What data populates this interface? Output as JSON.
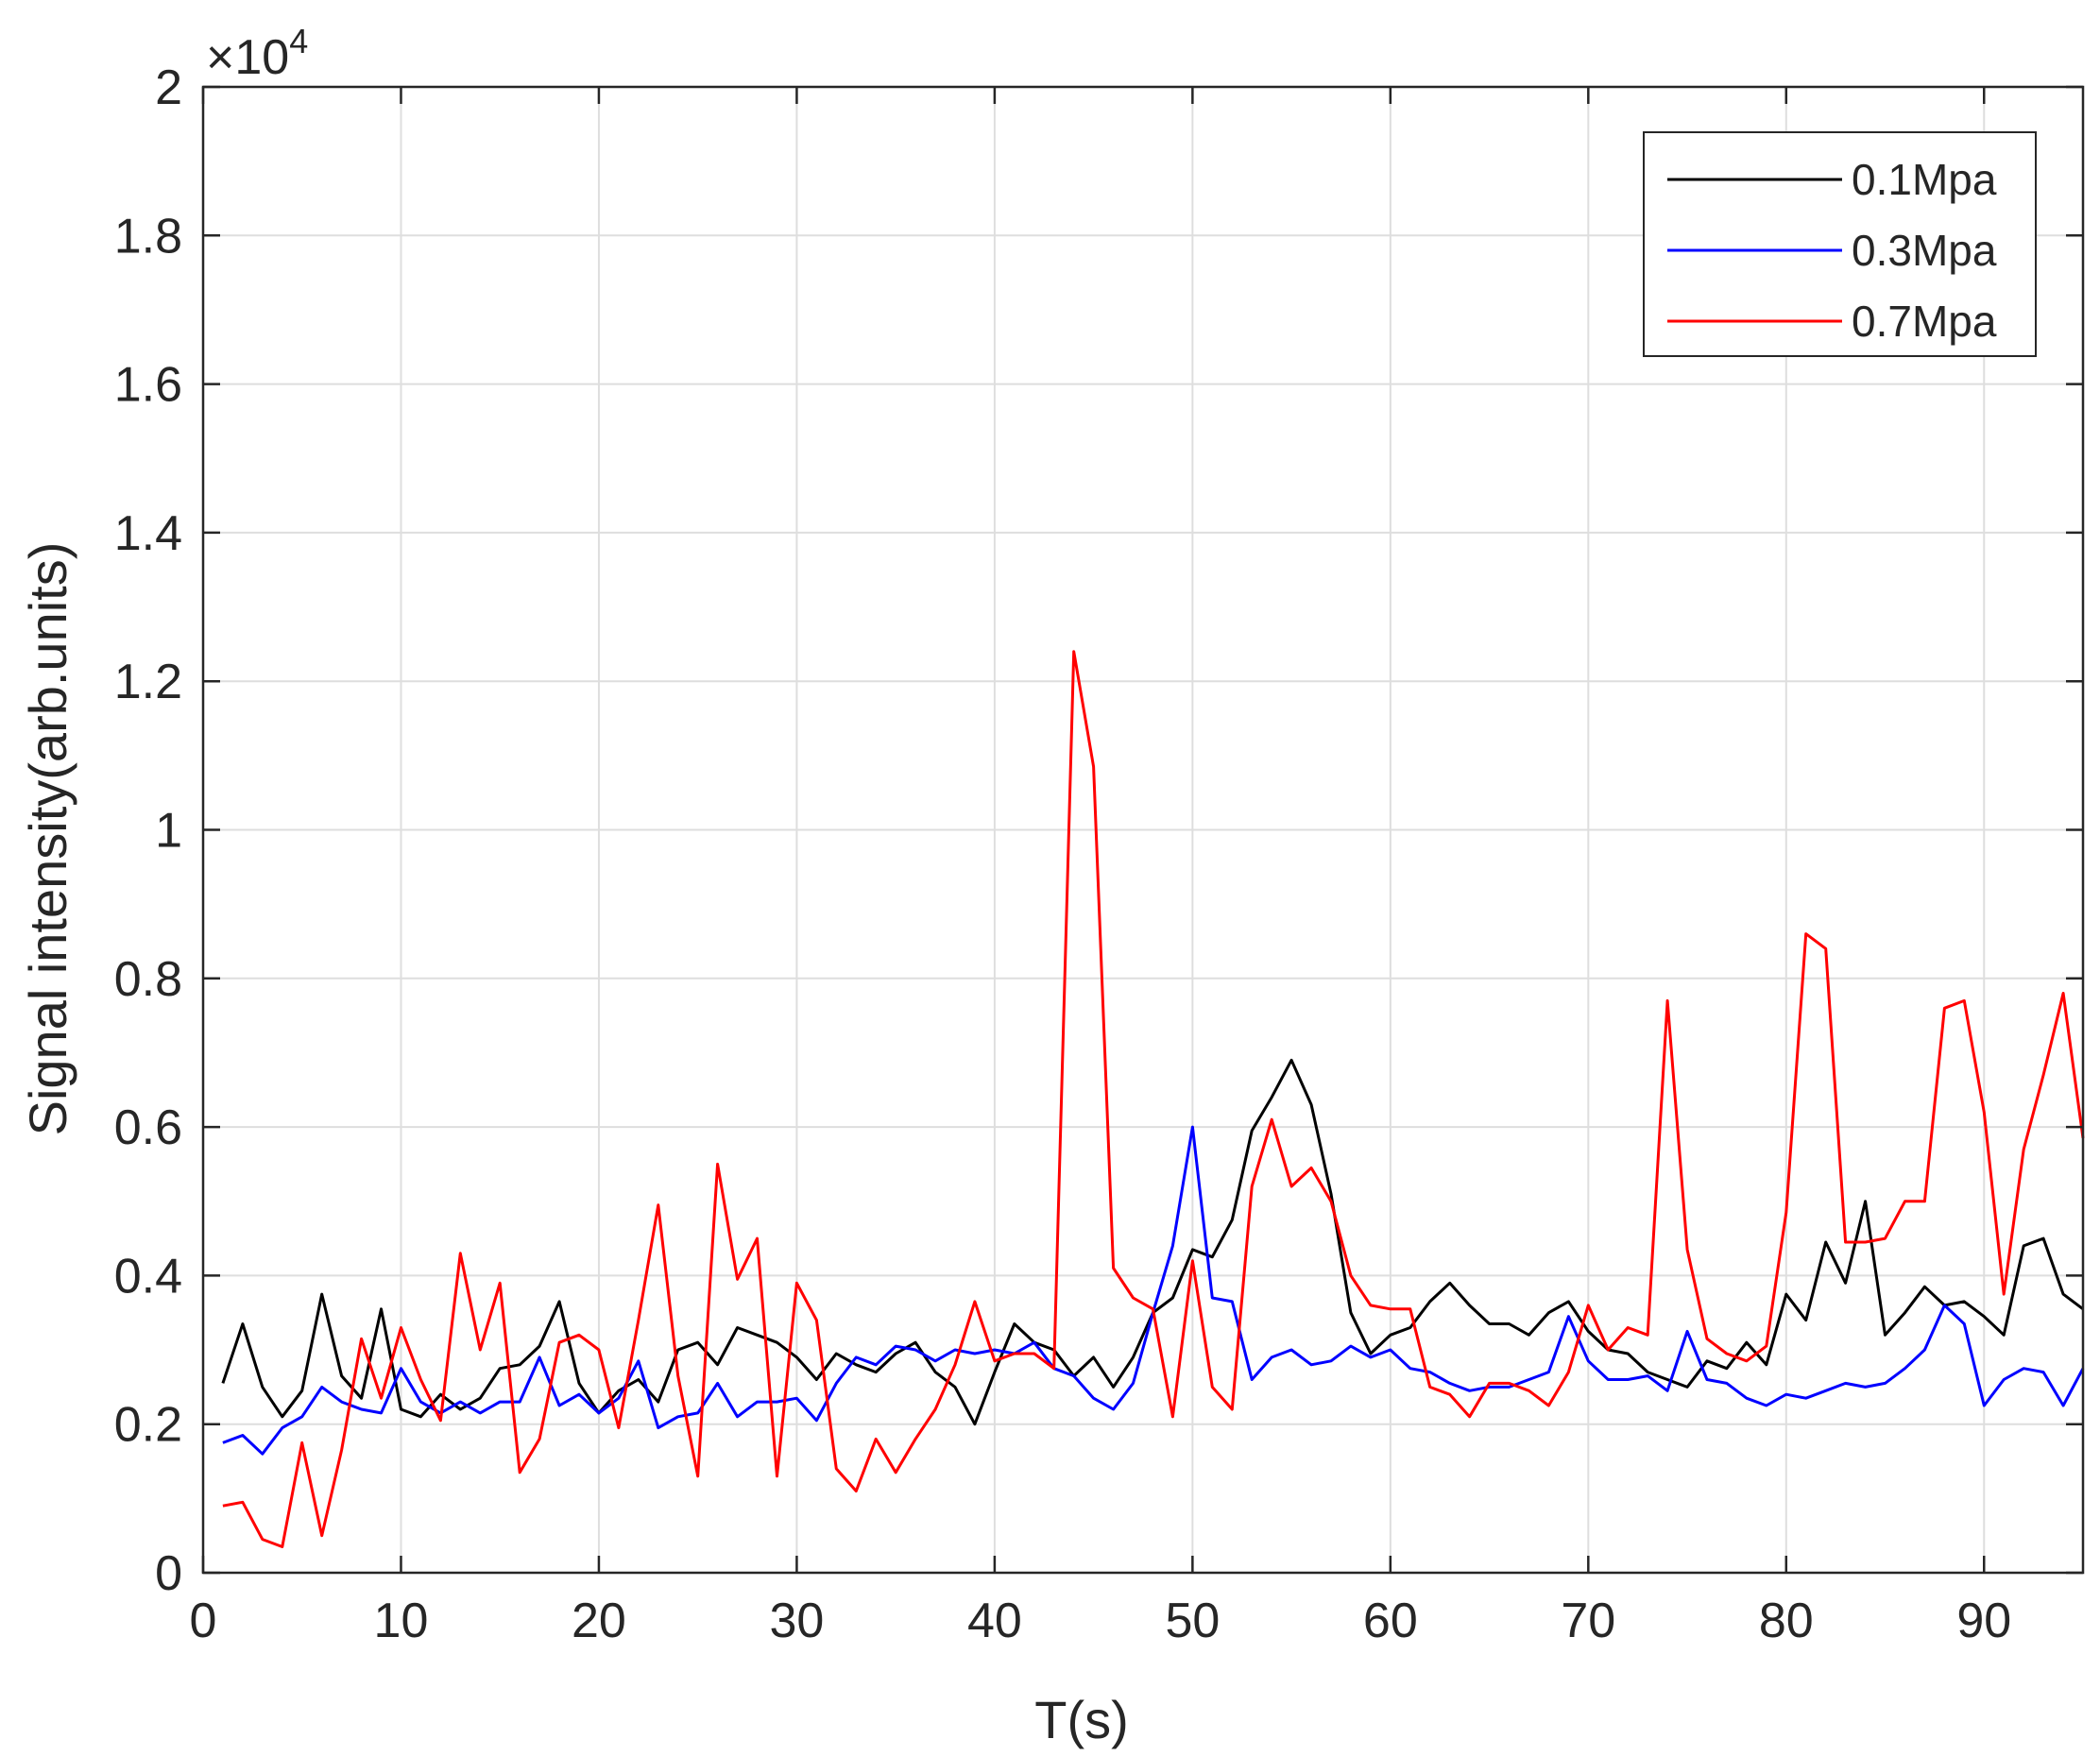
{
  "chart_data": {
    "type": "line",
    "xlabel": "T(s)",
    "ylabel": "Signal intensity(arb.units)",
    "y_multiplier": {
      "base": "×10",
      "exponent": "4"
    },
    "xlim": [
      0,
      95
    ],
    "ylim": [
      0,
      20000
    ],
    "x_ticks": [
      0,
      10,
      20,
      30,
      40,
      50,
      60,
      70,
      80,
      90
    ],
    "x_tick_labels": [
      "0",
      "10",
      "20",
      "30",
      "40",
      "50",
      "60",
      "70",
      "80",
      "90"
    ],
    "y_ticks": [
      0,
      2000,
      4000,
      6000,
      8000,
      10000,
      12000,
      14000,
      16000,
      18000,
      20000
    ],
    "y_tick_labels": [
      "0",
      "0.2",
      "0.4",
      "0.6",
      "0.8",
      "1",
      "1.2",
      "1.4",
      "1.6",
      "1.8",
      "2"
    ],
    "grid": true,
    "legend_position": "top-right",
    "x": [
      1,
      2,
      3,
      4,
      5,
      6,
      7,
      8,
      9,
      10,
      11,
      12,
      13,
      14,
      15,
      16,
      17,
      18,
      19,
      20,
      21,
      22,
      23,
      24,
      25,
      26,
      27,
      28,
      29,
      30,
      31,
      32,
      33,
      34,
      35,
      36,
      37,
      38,
      39,
      40,
      41,
      42,
      43,
      44,
      45,
      46,
      47,
      48,
      49,
      50,
      51,
      52,
      53,
      54,
      55,
      56,
      57,
      58,
      59,
      60,
      61,
      62,
      63,
      64,
      65,
      66,
      67,
      68,
      69,
      70,
      71,
      72,
      73,
      74,
      75,
      76,
      77,
      78,
      79,
      80,
      81,
      82,
      83,
      84,
      85,
      86,
      87,
      88,
      89,
      90,
      91,
      92,
      93,
      94,
      95
    ],
    "series": [
      {
        "name": "0.1Mpa",
        "color": "#000000",
        "values": [
          2550,
          3350,
          2500,
          2100,
          2450,
          3750,
          2650,
          2350,
          3550,
          2200,
          2100,
          2400,
          2200,
          2350,
          2750,
          2800,
          3050,
          3650,
          2550,
          2150,
          2450,
          2600,
          2300,
          3000,
          3100,
          2800,
          3300,
          3200,
          3100,
          2900,
          2600,
          2950,
          2800,
          2700,
          2950,
          3100,
          2700,
          2500,
          2000,
          2700,
          3350,
          3100,
          3000,
          2650,
          2900,
          2500,
          2900,
          3500,
          3700,
          4350,
          4250,
          4750,
          5950,
          6400,
          6900,
          6300,
          5100,
          3500,
          2950,
          3200,
          3300,
          3650,
          3900,
          3600,
          3350,
          3350,
          3200,
          3500,
          3650,
          3250,
          3000,
          2950,
          2700,
          2600,
          2500,
          2850,
          2750,
          3100,
          2800,
          3750,
          3400,
          4450,
          3900,
          5000,
          3200,
          3500,
          3850,
          3600,
          3650,
          3450,
          3200,
          4400,
          4500,
          3750,
          3550
        ]
      },
      {
        "name": "0.3Mpa",
        "color": "#0000ff",
        "values": [
          1750,
          1850,
          1600,
          1950,
          2100,
          2500,
          2300,
          2200,
          2150,
          2750,
          2300,
          2150,
          2300,
          2150,
          2300,
          2300,
          2900,
          2250,
          2400,
          2150,
          2350,
          2850,
          1950,
          2100,
          2150,
          2550,
          2100,
          2300,
          2300,
          2350,
          2050,
          2550,
          2900,
          2800,
          3050,
          3000,
          2850,
          3000,
          2950,
          3000,
          2950,
          3100,
          2750,
          2650,
          2350,
          2200,
          2550,
          3500,
          4400,
          6000,
          3700,
          3650,
          2600,
          2900,
          3000,
          2800,
          2850,
          3050,
          2900,
          3000,
          2750,
          2700,
          2550,
          2450,
          2500,
          2500,
          2600,
          2700,
          3450,
          2850,
          2600,
          2600,
          2650,
          2450,
          3250,
          2600,
          2550,
          2350,
          2250,
          2400,
          2350,
          2450,
          2550,
          2500,
          2550,
          2750,
          3000,
          3600,
          3350,
          2250,
          2600,
          2750,
          2700,
          2250,
          2750
        ]
      },
      {
        "name": "0.7Mpa",
        "color": "#ff0000",
        "values": [
          900,
          950,
          450,
          350,
          1750,
          500,
          1650,
          3150,
          2350,
          3300,
          2600,
          2050,
          4300,
          3000,
          3900,
          1350,
          1800,
          3100,
          3200,
          3000,
          1950,
          3400,
          4950,
          2650,
          1300,
          5500,
          3950,
          4500,
          1300,
          3900,
          3400,
          1400,
          1100,
          1800,
          1350,
          1800,
          2200,
          2800,
          3650,
          2850,
          2950,
          2950,
          2750,
          12400,
          10850,
          4100,
          3700,
          3550,
          2100,
          4200,
          2500,
          2200,
          5200,
          6100,
          5200,
          5450,
          5000,
          4000,
          3600,
          3550,
          3550,
          2500,
          2400,
          2100,
          2550,
          2550,
          2450,
          2250,
          2700,
          3600,
          3000,
          3300,
          3200,
          7700,
          4350,
          3150,
          2950,
          2850,
          3050,
          4850,
          8600,
          8400,
          4450,
          4450,
          4500,
          5000,
          5000,
          7600,
          7700,
          6200,
          3750,
          5700,
          6700,
          7800,
          5850
        ]
      }
    ]
  }
}
